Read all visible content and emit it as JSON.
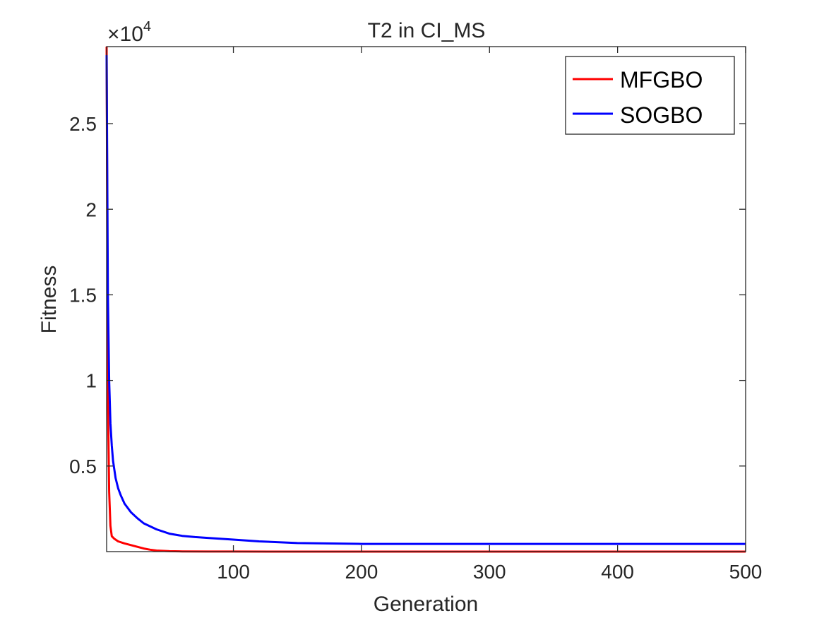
{
  "chart_data": {
    "type": "line",
    "title": "T2 in CI_MS",
    "xlabel": "Generation",
    "ylabel": "Fitness",
    "y_multiplier_label": "×10",
    "y_multiplier_exponent": "4",
    "xlim": [
      1,
      500
    ],
    "ylim": [
      0,
      29500
    ],
    "x_ticks": [
      100,
      200,
      300,
      400,
      500
    ],
    "x_tick_labels": [
      "100",
      "200",
      "300",
      "400",
      "500"
    ],
    "y_ticks": [
      5000,
      10000,
      15000,
      20000,
      25000
    ],
    "y_tick_labels": [
      "0.5",
      "1",
      "1.5",
      "2",
      "2.5"
    ],
    "grid": false,
    "legend_position": "top-right",
    "series": [
      {
        "name": "MFGBO",
        "color": "#ff0000",
        "x": [
          1,
          2,
          3,
          4,
          5,
          7,
          10,
          15,
          20,
          25,
          30,
          35,
          40,
          50,
          60,
          80,
          100,
          150,
          200,
          300,
          400,
          500
        ],
        "y": [
          29500,
          9000,
          3500,
          1500,
          900,
          750,
          600,
          480,
          380,
          280,
          180,
          110,
          60,
          25,
          12,
          5,
          3,
          2,
          1,
          0,
          0,
          0
        ]
      },
      {
        "name": "SOGBO",
        "color": "#0000ff",
        "x": [
          1,
          2,
          3,
          4,
          5,
          6,
          8,
          10,
          12,
          15,
          20,
          25,
          30,
          40,
          50,
          60,
          70,
          80,
          100,
          120,
          150,
          200,
          250,
          300,
          400,
          500
        ],
        "y": [
          29000,
          15000,
          10000,
          7500,
          6200,
          5300,
          4300,
          3700,
          3300,
          2800,
          2300,
          1950,
          1650,
          1300,
          1050,
          920,
          850,
          800,
          700,
          600,
          500,
          450,
          450,
          450,
          450,
          450
        ]
      }
    ]
  }
}
